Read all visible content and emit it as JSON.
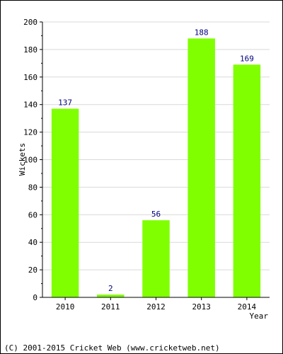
{
  "chart_data": {
    "type": "bar",
    "categories": [
      "2010",
      "2011",
      "2012",
      "2013",
      "2014"
    ],
    "values": [
      137,
      2,
      56,
      188,
      169
    ],
    "value_labels": [
      "137",
      "2",
      "56",
      "188",
      "169"
    ],
    "xlabel": "Year",
    "ylabel": "Wickets",
    "ylim": [
      0,
      200
    ],
    "yticks": [
      0,
      20,
      40,
      60,
      80,
      100,
      120,
      140,
      160,
      180,
      200
    ],
    "grid": true,
    "bar_color": "#80ff00",
    "value_label_color": "#000080",
    "grid_color": "#d9d9d9"
  },
  "footer": {
    "text": "(C) 2001-2015 Cricket Web (www.cricketweb.net)"
  }
}
